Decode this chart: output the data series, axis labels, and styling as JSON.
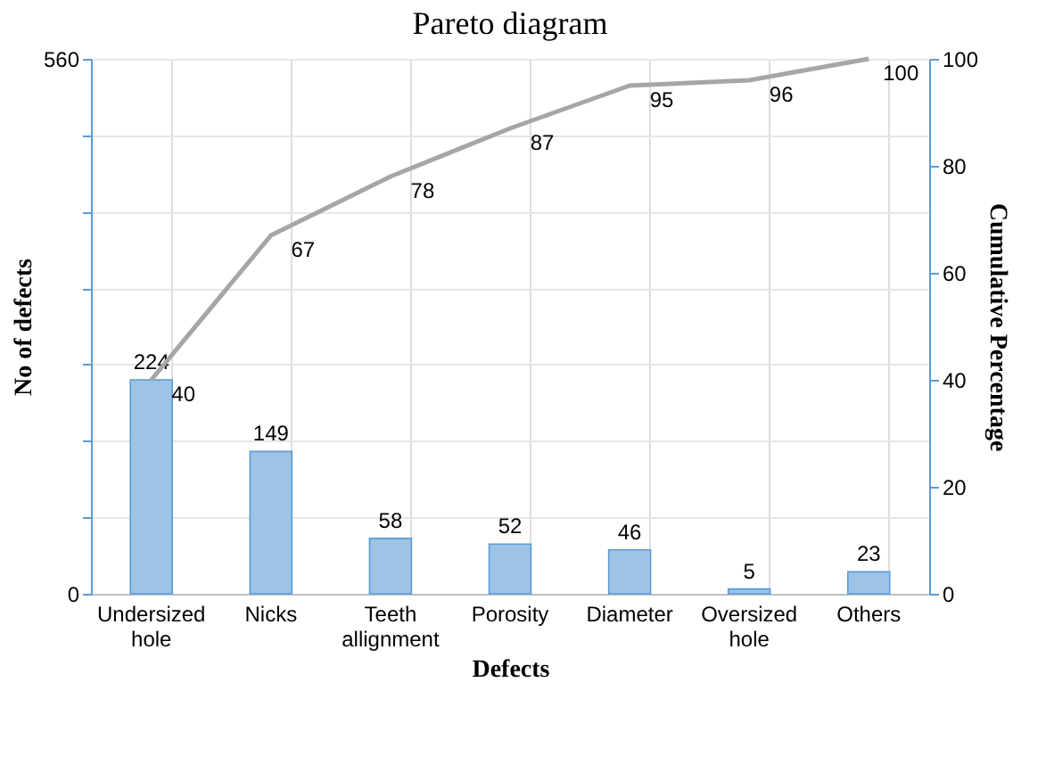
{
  "chart_data": {
    "type": "bar",
    "title": "Pareto diagram",
    "xlabel": "Defects",
    "ylabel": "No of defects",
    "y2label": "Cumulative Percentage",
    "categories": [
      "Undersized hole",
      "Nicks",
      "Teeth allignment",
      "Porosity",
      "Diameter",
      "Oversized hole",
      "Others"
    ],
    "series": [
      {
        "color": "#9dc3e6",
        "values": [
          224,
          149,
          58,
          52,
          46,
          5,
          23
        ]
      },
      {
        "type": "line",
        "axis": "y2",
        "color": "#a6a6a6",
        "values": [
          40,
          67,
          78,
          87,
          95,
          96,
          100
        ]
      }
    ],
    "ylim": [
      0,
      560
    ],
    "yticks": [
      0,
      {
        "value": 80,
        "label": null
      },
      {
        "value": 160,
        "label": null
      },
      {
        "value": 240,
        "label": null
      },
      {
        "value": 320,
        "label": null
      },
      {
        "value": 400,
        "label": null
      },
      {
        "value": 480,
        "label": null
      },
      560
    ],
    "y2lim": [
      0,
      100
    ],
    "y2ticks": [
      0,
      20,
      40,
      60,
      80,
      100
    ],
    "data_labels": true,
    "grid": true,
    "marker": "none",
    "line_style": "solid"
  }
}
